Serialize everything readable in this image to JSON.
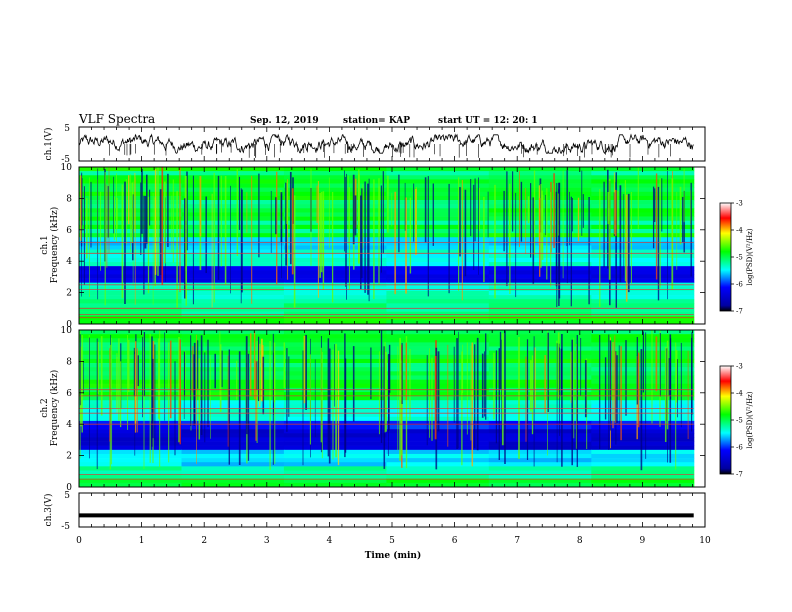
{
  "header": {
    "title": "VLF Spectra",
    "date": "Sep. 12, 2019",
    "station": "station= KAP",
    "start_ut": "start  UT =   12: 20: 1"
  },
  "chart_data": [
    {
      "type": "line",
      "ylabel": "ch.1(V)",
      "ylim": [
        -5,
        5
      ],
      "yticks": [
        "5",
        "-5"
      ],
      "description_free": true
    },
    {
      "type": "heatmap",
      "ylabel_line1": "ch.1",
      "ylabel_line2": "Frequency  (kHz)",
      "ylim": [
        0,
        10
      ],
      "yticks": [
        "0",
        "2",
        "4",
        "6",
        "8",
        "10"
      ],
      "colorbar": {
        "label": "log(PSD)(V²/Hz)",
        "range": [
          -7,
          -3
        ],
        "ticks": [
          "-3",
          "-4",
          "-5",
          "-6",
          "-7"
        ]
      }
    },
    {
      "type": "heatmap",
      "ylabel_line1": "ch.2",
      "ylabel_line2": "Frequency  (kHz)",
      "ylim": [
        0,
        10
      ],
      "yticks": [
        "0",
        "2",
        "4",
        "6",
        "8",
        "10"
      ],
      "colorbar": {
        "label": "log(PSD)(V²/Hz)",
        "range": [
          -7,
          -3
        ],
        "ticks": [
          "-3",
          "-4",
          "-5",
          "-6",
          "-7"
        ]
      }
    },
    {
      "type": "line",
      "ylabel": "ch.3(V)",
      "ylim": [
        -5,
        5
      ],
      "yticks": [
        "5",
        "-5"
      ],
      "constant_value": -1.6
    }
  ],
  "xaxis": {
    "label": "Time  (min)",
    "xlim": [
      0,
      10
    ],
    "ticks": [
      "0",
      "1",
      "2",
      "3",
      "4",
      "5",
      "6",
      "7",
      "8",
      "9",
      "10"
    ],
    "data_end": 9.82
  }
}
